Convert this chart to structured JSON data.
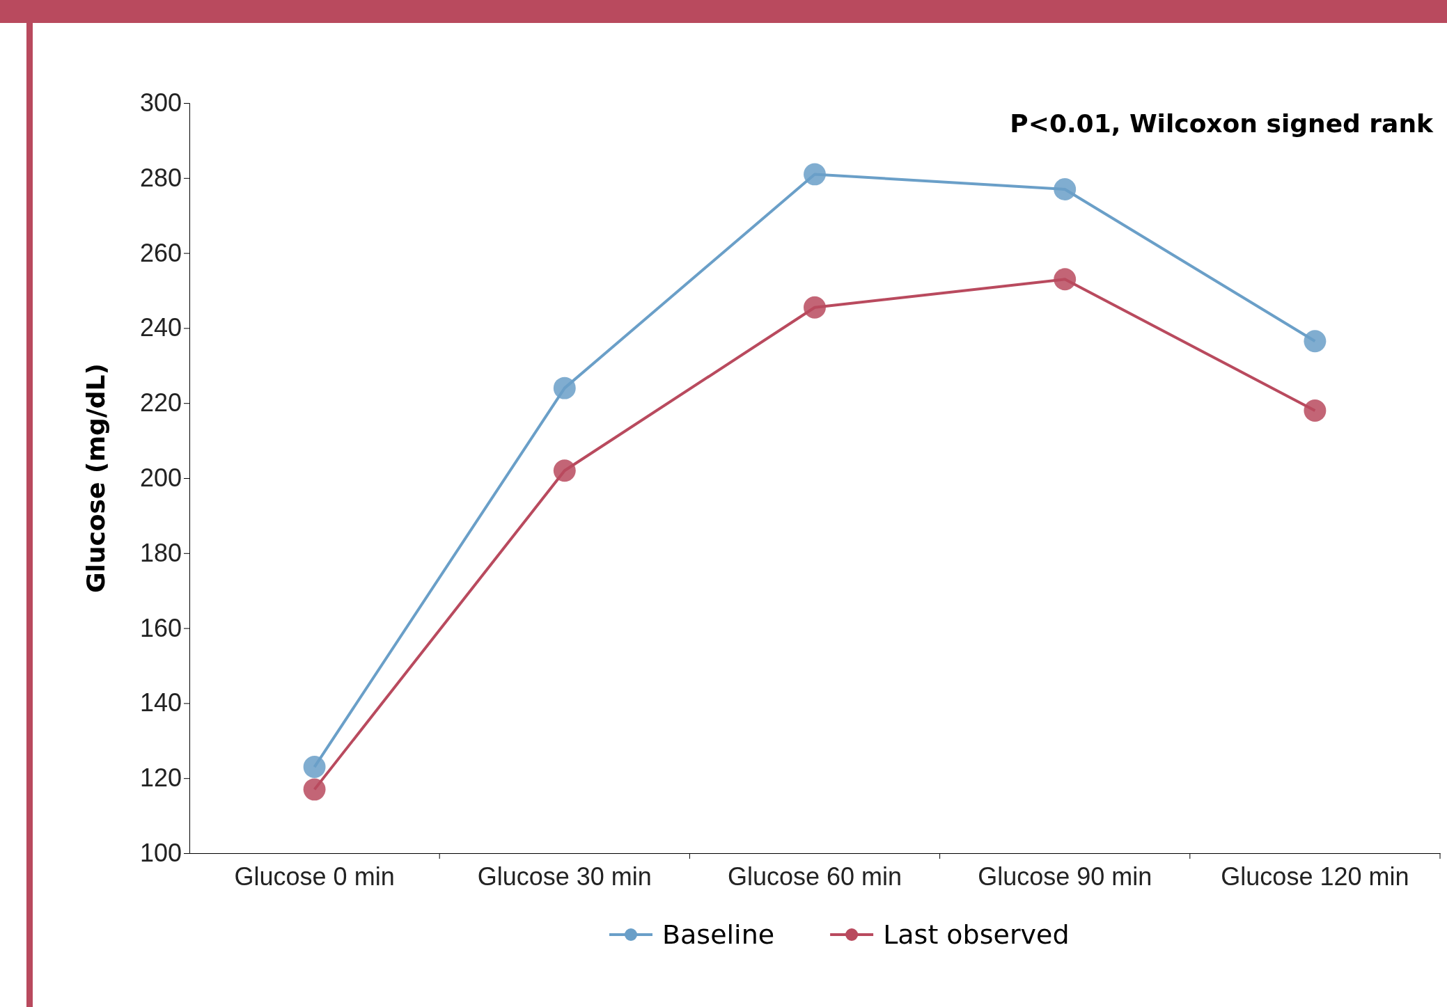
{
  "chart_data": {
    "type": "line",
    "ylabel": "Glucose (mg/dL)",
    "categories": [
      "Glucose 0 min",
      "Glucose 30 min",
      "Glucose 60 min",
      "Glucose 90 min",
      "Glucose 120 min"
    ],
    "series": [
      {
        "name": "Baseline",
        "color": "#6a9fc8",
        "values": [
          123,
          224,
          281,
          277,
          236.5
        ]
      },
      {
        "name": "Last observed",
        "color": "#b94a5e",
        "values": [
          117,
          202,
          245.5,
          253,
          218
        ]
      }
    ],
    "ylim": [
      100,
      300
    ],
    "yticks": [
      100,
      120,
      140,
      160,
      180,
      200,
      220,
      240,
      260,
      280,
      300
    ],
    "annotations": [
      "P<0.01, Wilcoxon signed rank"
    ],
    "legend": "bottom",
    "marker": "circle",
    "line_style": "solid",
    "grid": false
  }
}
